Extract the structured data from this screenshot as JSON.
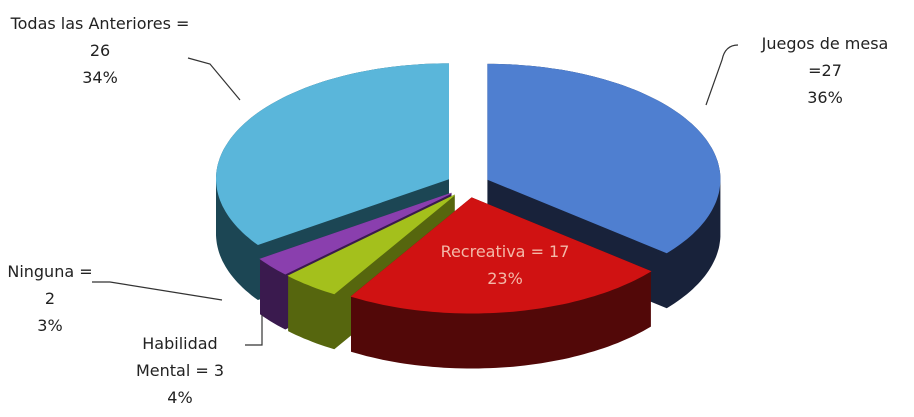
{
  "chart_data": {
    "type": "pie",
    "categories": [
      "Juegos de mesa",
      "Recreativa",
      "Habilidad Mental",
      "Ninguna",
      "Todas las Anteriores"
    ],
    "values": [
      27,
      17,
      3,
      2,
      26
    ],
    "value_labels": [
      "=27",
      "= 17",
      "= 3",
      "= 2",
      "= 26"
    ],
    "percents": [
      36,
      23,
      4,
      3,
      34
    ],
    "percent_labels": [
      "36%",
      "23%",
      "4%",
      "3%",
      "34%"
    ],
    "colors": [
      "#4f7fd0",
      "#d01212",
      "#a4c01c",
      "#8a3fae",
      "#5ab6da"
    ],
    "side_colors": [
      "#18223a",
      "#520808",
      "#56660e",
      "#3a1a4e",
      "#1c4654"
    ]
  }
}
